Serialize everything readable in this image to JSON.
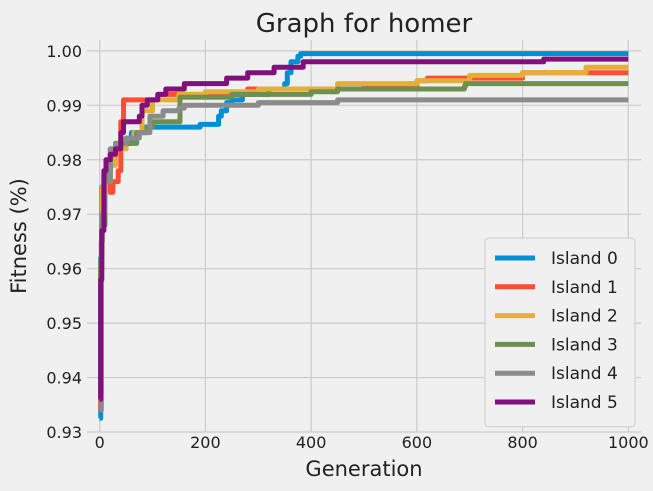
{
  "chart_data": {
    "type": "line",
    "title": "Graph for homer",
    "xlabel": "Generation",
    "ylabel": "Fitness (%)",
    "xlim": [
      -24,
      1024
    ],
    "ylim": [
      0.93,
      1.002
    ],
    "xticks": [
      0,
      200,
      400,
      600,
      800,
      1000
    ],
    "xtick_labels": [
      "0",
      "200",
      "400",
      "600",
      "800",
      "1000"
    ],
    "yticks": [
      0.93,
      0.94,
      0.95,
      0.96,
      0.97,
      0.98,
      0.99,
      1.0
    ],
    "ytick_labels": [
      "0.93",
      "0.94",
      "0.95",
      "0.96",
      "0.97",
      "0.98",
      "0.99",
      "1.00"
    ],
    "grid": true,
    "legend_position": "bottom-right",
    "series": [
      {
        "name": "Island 0",
        "color": "#008fd5",
        "points": [
          [
            0,
            0.9325
          ],
          [
            2,
            0.962
          ],
          [
            4,
            0.975
          ],
          [
            8,
            0.977
          ],
          [
            15,
            0.979
          ],
          [
            25,
            0.981
          ],
          [
            30,
            0.983
          ],
          [
            50,
            0.983
          ],
          [
            60,
            0.985
          ],
          [
            75,
            0.985
          ],
          [
            85,
            0.986
          ],
          [
            150,
            0.986
          ],
          [
            190,
            0.9865
          ],
          [
            222,
            0.9865
          ],
          [
            225,
            0.988
          ],
          [
            230,
            0.989
          ],
          [
            240,
            0.9905
          ],
          [
            250,
            0.991
          ],
          [
            270,
            0.992
          ],
          [
            320,
            0.993
          ],
          [
            350,
            0.994
          ],
          [
            355,
            0.996
          ],
          [
            362,
            0.998
          ],
          [
            375,
            0.999
          ],
          [
            380,
            0.9995
          ],
          [
            1000,
            0.9995
          ]
        ]
      },
      {
        "name": "Island 1",
        "color": "#fc4f30",
        "points": [
          [
            0,
            0.934
          ],
          [
            2,
            0.96
          ],
          [
            4,
            0.972
          ],
          [
            10,
            0.976
          ],
          [
            20,
            0.974
          ],
          [
            25,
            0.976
          ],
          [
            35,
            0.978
          ],
          [
            40,
            0.987
          ],
          [
            45,
            0.991
          ],
          [
            55,
            0.991
          ],
          [
            60,
            0.991
          ],
          [
            90,
            0.991
          ],
          [
            110,
            0.992
          ],
          [
            200,
            0.992
          ],
          [
            280,
            0.993
          ],
          [
            400,
            0.993
          ],
          [
            500,
            0.9935
          ],
          [
            600,
            0.9945
          ],
          [
            620,
            0.995
          ],
          [
            700,
            0.995
          ],
          [
            800,
            0.996
          ],
          [
            1000,
            0.996
          ]
        ]
      },
      {
        "name": "Island 2",
        "color": "#e5ae38",
        "points": [
          [
            0,
            0.937
          ],
          [
            3,
            0.965
          ],
          [
            5,
            0.975
          ],
          [
            10,
            0.976
          ],
          [
            20,
            0.979
          ],
          [
            30,
            0.982
          ],
          [
            40,
            0.982
          ],
          [
            50,
            0.984
          ],
          [
            65,
            0.985
          ],
          [
            80,
            0.989
          ],
          [
            100,
            0.991
          ],
          [
            150,
            0.992
          ],
          [
            200,
            0.9925
          ],
          [
            300,
            0.993
          ],
          [
            400,
            0.993
          ],
          [
            450,
            0.994
          ],
          [
            600,
            0.9945
          ],
          [
            700,
            0.9955
          ],
          [
            800,
            0.996
          ],
          [
            900,
            0.996
          ],
          [
            920,
            0.997
          ],
          [
            1000,
            0.997
          ]
        ]
      },
      {
        "name": "Island 3",
        "color": "#6d904f",
        "points": [
          [
            0,
            0.936
          ],
          [
            2,
            0.962
          ],
          [
            4,
            0.968
          ],
          [
            10,
            0.977
          ],
          [
            20,
            0.982
          ],
          [
            30,
            0.983
          ],
          [
            40,
            0.983
          ],
          [
            60,
            0.983
          ],
          [
            70,
            0.985
          ],
          [
            90,
            0.986
          ],
          [
            100,
            0.987
          ],
          [
            150,
            0.987
          ],
          [
            152,
            0.9915
          ],
          [
            200,
            0.9915
          ],
          [
            250,
            0.992
          ],
          [
            300,
            0.992
          ],
          [
            350,
            0.992
          ],
          [
            400,
            0.9925
          ],
          [
            450,
            0.993
          ],
          [
            690,
            0.9935
          ],
          [
            692,
            0.994
          ],
          [
            1000,
            0.994
          ]
        ]
      },
      {
        "name": "Island 4",
        "color": "#8b8b8b",
        "points": [
          [
            0,
            0.934
          ],
          [
            3,
            0.965
          ],
          [
            5,
            0.97
          ],
          [
            10,
            0.976
          ],
          [
            20,
            0.982
          ],
          [
            30,
            0.983
          ],
          [
            50,
            0.984
          ],
          [
            75,
            0.985
          ],
          [
            95,
            0.988
          ],
          [
            120,
            0.989
          ],
          [
            150,
            0.9895
          ],
          [
            160,
            0.99
          ],
          [
            250,
            0.99
          ],
          [
            300,
            0.9905
          ],
          [
            400,
            0.9905
          ],
          [
            440,
            0.9905
          ],
          [
            450,
            0.991
          ],
          [
            1000,
            0.991
          ]
        ]
      },
      {
        "name": "Island 5",
        "color": "#810f7c",
        "points": [
          [
            0,
            0.936
          ],
          [
            2,
            0.958
          ],
          [
            4,
            0.967
          ],
          [
            8,
            0.978
          ],
          [
            12,
            0.98
          ],
          [
            20,
            0.981
          ],
          [
            30,
            0.982
          ],
          [
            40,
            0.985
          ],
          [
            45,
            0.987
          ],
          [
            65,
            0.987
          ],
          [
            75,
            0.988
          ],
          [
            80,
            0.99
          ],
          [
            90,
            0.991
          ],
          [
            110,
            0.992
          ],
          [
            125,
            0.993
          ],
          [
            160,
            0.994
          ],
          [
            220,
            0.994
          ],
          [
            240,
            0.995
          ],
          [
            280,
            0.996
          ],
          [
            320,
            0.996
          ],
          [
            330,
            0.997
          ],
          [
            370,
            0.997
          ],
          [
            385,
            0.998
          ],
          [
            500,
            0.998
          ],
          [
            840,
            0.9985
          ],
          [
            1000,
            0.9985
          ]
        ]
      }
    ]
  }
}
